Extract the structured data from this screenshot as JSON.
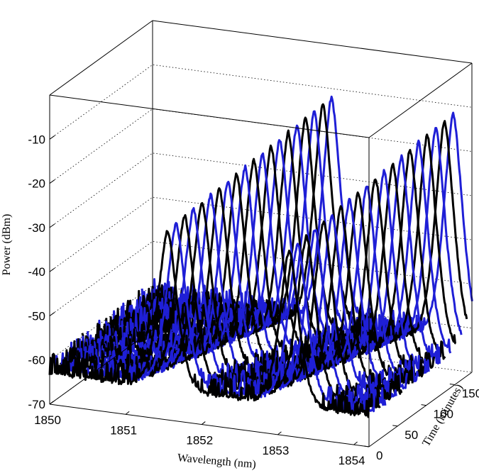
{
  "chart_data": {
    "type": "line",
    "xlabel": "Wavelength (nm)",
    "ylabel": "Time (minutes)",
    "zlabel": "Power (dBm)",
    "xlim": [
      1850,
      1854.2
    ],
    "ylim": [
      0,
      180
    ],
    "zlim": [
      -70,
      0
    ],
    "x_ticks": [
      "1850",
      "1851",
      "1852",
      "1853",
      "1854"
    ],
    "y_ticks": [
      "0",
      "50",
      "100",
      "150"
    ],
    "z_ticks": [
      "-10",
      "-20",
      "-30",
      "-40",
      "-50",
      "-60",
      "-70"
    ],
    "grid": true,
    "trace_count": 20,
    "trace_time_step_minutes": 9.5,
    "trace_colors": [
      "#000000",
      "#1f1fd6"
    ],
    "noise_floor_dbm": -63,
    "peaks": [
      {
        "start_wavelength_nm": 1851.55,
        "wavelength_drift_nm_over_run": 0.8,
        "start_power_dbm": -27,
        "end_power_dbm": -12,
        "width_nm": 0.18
      },
      {
        "start_wavelength_nm": 1853.15,
        "wavelength_drift_nm_over_run": 0.8,
        "start_power_dbm": -28,
        "end_power_dbm": -12,
        "width_nm": 0.18
      }
    ]
  }
}
